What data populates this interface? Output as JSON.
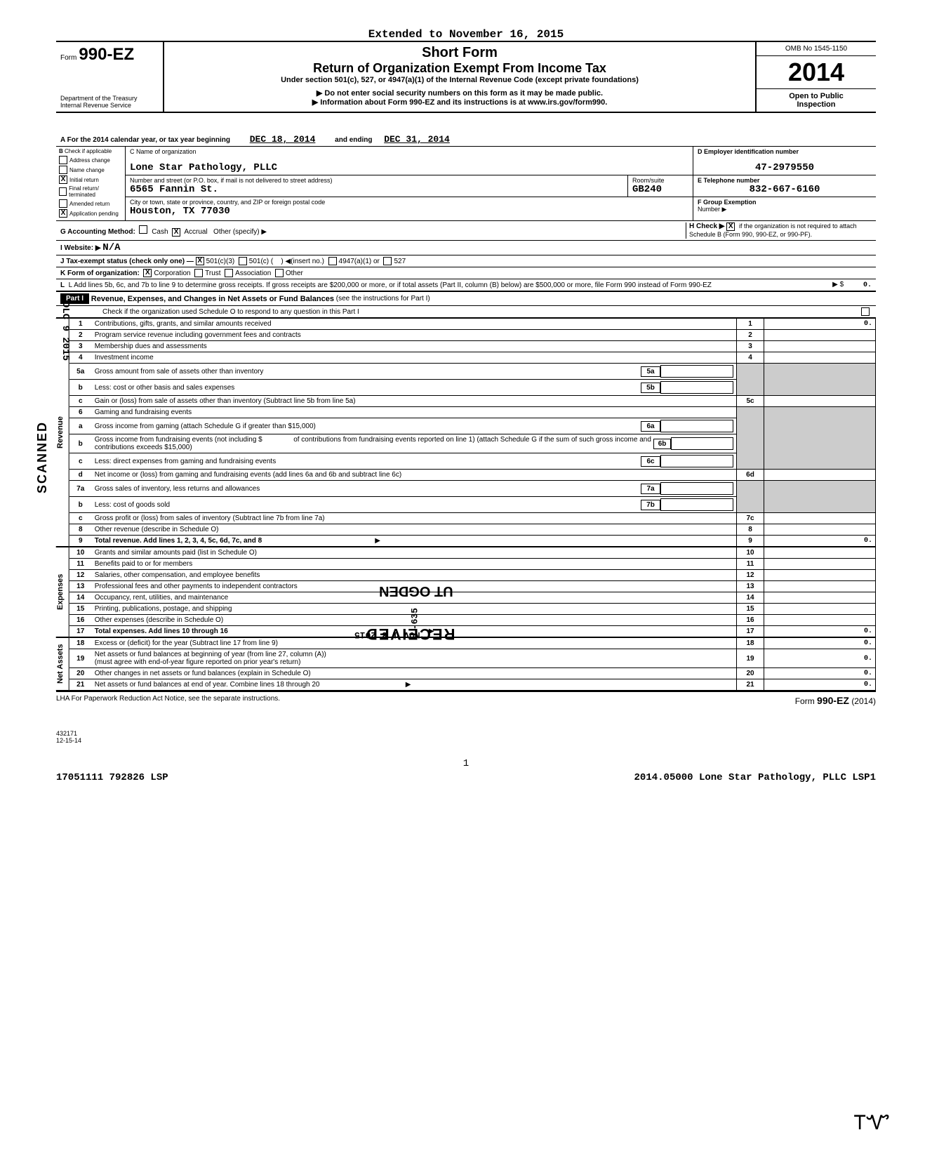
{
  "extended_to": "Extended to November 16, 2015",
  "short_form": "Short Form",
  "form_prefix": "Form",
  "form_number": "990-EZ",
  "return_title": "Return of Organization Exempt From Income Tax",
  "section_note": "Under section 501(c), 527, or 4947(a)(1) of the Internal Revenue Code (except private foundations)",
  "ssn_note": "▶ Do not enter social security numbers on this form as it may be made public.",
  "info_note": "▶ Information about Form 990-EZ and its instructions is at www.irs.gov/form990.",
  "dept1": "Department of the Treasury",
  "dept2": "Internal Revenue Service",
  "omb": "OMB No 1545-1150",
  "year": "2014",
  "open_public": "Open to Public",
  "inspection": "Inspection",
  "tax_year": {
    "label_a": "A  For the 2014 calendar year, or tax year beginning",
    "begin": "DEC 18, 2014",
    "and_ending": "and ending",
    "end": "DEC 31, 2014"
  },
  "col_b": {
    "header": "B",
    "check_if": "Check if applicable",
    "items": [
      {
        "checked": false,
        "label": "Address change"
      },
      {
        "checked": false,
        "label": "Name change"
      },
      {
        "checked": true,
        "label": "Initial return"
      },
      {
        "checked": false,
        "label": "Final return/ terminated"
      },
      {
        "checked": false,
        "label": "Amended return"
      },
      {
        "checked": true,
        "label": "Application pending"
      }
    ]
  },
  "org": {
    "c_label": "C Name of organization",
    "name": "Lone Star Pathology, PLLC",
    "addr_label": "Number and street (or P.O. box, if mail is not delivered to street address)",
    "street": "6565 Fannin St.",
    "room_label": "Room/suite",
    "room": "GB240",
    "city_label": "City or town, state or province, country, and ZIP or foreign postal code",
    "city": "Houston, TX  77030"
  },
  "ein": {
    "label": "D Employer identification number",
    "value": "47-2979550"
  },
  "phone": {
    "label": "E Telephone number",
    "value": "832-667-6160"
  },
  "group": {
    "label": "F Group Exemption",
    "number_label": "Number ▶"
  },
  "rows": {
    "g": "G  Accounting Method:",
    "g_cash": "Cash",
    "g_accrual": "Accrual",
    "g_other": "Other (specify) ▶",
    "h": "H Check ▶",
    "h_note": "if the organization is not required to attach Schedule B (Form 990, 990-EZ, or 990-PF).",
    "i": "I   Website: ▶",
    "i_val": "N/A",
    "j": "J  Tax-exempt status (check only one) —",
    "j_501c3": "501(c)(3)",
    "j_501c": "501(c) (",
    "j_insert": ") ◀(insert no.)",
    "j_4947": "4947(a)(1) or",
    "j_527": "527",
    "k": "K  Form of organization:",
    "k_corp": "Corporation",
    "k_trust": "Trust",
    "k_assoc": "Association",
    "k_other": "Other",
    "l": "L  Add lines 5b, 6c, and 7b to line 9 to determine gross receipts. If gross receipts are $200,000 or more, or if total assets (Part II, column (B) below) are $500,000 or more, file Form 990 instead of Form 990-EZ",
    "l_arrow": "▶  $",
    "l_val": "0."
  },
  "part1": {
    "label": "Part I",
    "title": "Revenue, Expenses, and Changes in Net Assets or Fund Balances",
    "title_paren": "(see the instructions for Part I)",
    "check_note": "Check if the organization used Schedule O to respond to any question in this Part I"
  },
  "lines": {
    "1": "Contributions, gifts, grants, and similar amounts received",
    "2": "Program service revenue including government fees and contracts",
    "3": "Membership dues and assessments",
    "4": "Investment income",
    "5a": "Gross amount from sale of assets other than inventory",
    "5b": "Less: cost or other basis and sales expenses",
    "5c": "Gain or (loss) from sale of assets other than inventory (Subtract line 5b from line 5a)",
    "6": "Gaming and fundraising events",
    "6a": "Gross income from gaming (attach Schedule G if greater than $15,000)",
    "6b_pre": "Gross income from fundraising events (not including $",
    "6b_post": "of contributions from fundraising events reported on line 1) (attach Schedule G if the sum of such gross income and contributions exceeds $15,000)",
    "6c": "Less: direct expenses from gaming and fundraising events",
    "6d": "Net income or (loss) from gaming and fundraising events (add lines 6a and 6b and subtract line 6c)",
    "7a": "Gross sales of inventory, less returns and allowances",
    "7b": "Less: cost of goods sold",
    "7c": "Gross profit or (loss) from sales of inventory (Subtract line 7b from line 7a)",
    "8": "Other revenue (describe in Schedule O)",
    "9": "Total revenue. Add lines 1, 2, 3, 4, 5c, 6d, 7c, and 8",
    "10": "Grants and similar amounts paid (list in Schedule O)",
    "11": "Benefits paid to or for members",
    "12": "Salaries, other compensation, and employee benefits",
    "13": "Professional fees and other payments to independent contractors",
    "14": "Occupancy, rent, utilities, and maintenance",
    "15": "Printing, publications, postage, and shipping",
    "16": "Other expenses (describe in Schedule O)",
    "17": "Total expenses. Add lines 10 through 16",
    "18": "Excess or (deficit) for the year (Subtract line 17 from line 9)",
    "19a": "Net assets or fund balances at beginning of year (from line 27, column (A))",
    "19b": "(must agree with end-of-year figure reported on prior year's return)",
    "20": "Other changes in net assets or fund balances (explain in Schedule O)",
    "21": "Net assets or fund balances at end of year. Combine lines 18 through 20"
  },
  "amounts": {
    "1": "0.",
    "9": "0.",
    "17": "0.",
    "18": "0.",
    "19": "0.",
    "20": "0.",
    "21": "0."
  },
  "side_labels": {
    "revenue": "Revenue",
    "expenses": "Expenses",
    "netassets": "Net Assets"
  },
  "footer": {
    "lha": "LHA  For Paperwork Reduction Act Notice, see the separate instructions.",
    "form": "Form",
    "form_no": "990-EZ",
    "form_yr": "(2014)"
  },
  "bottom": {
    "code1": "432171",
    "code2": "12-15-14",
    "page": "1",
    "line": "17051111 792826 LSP",
    "line2": "2014.05000 Lone Star Pathology, PLLC   LSP1"
  },
  "stamps": {
    "scanned": "SCANNED",
    "date": "DLC 9 2015",
    "received": "RECEIVED",
    "ogden": "UT  OGDEN",
    "nov": "NOV 1 8 2015",
    "num": "-635"
  }
}
